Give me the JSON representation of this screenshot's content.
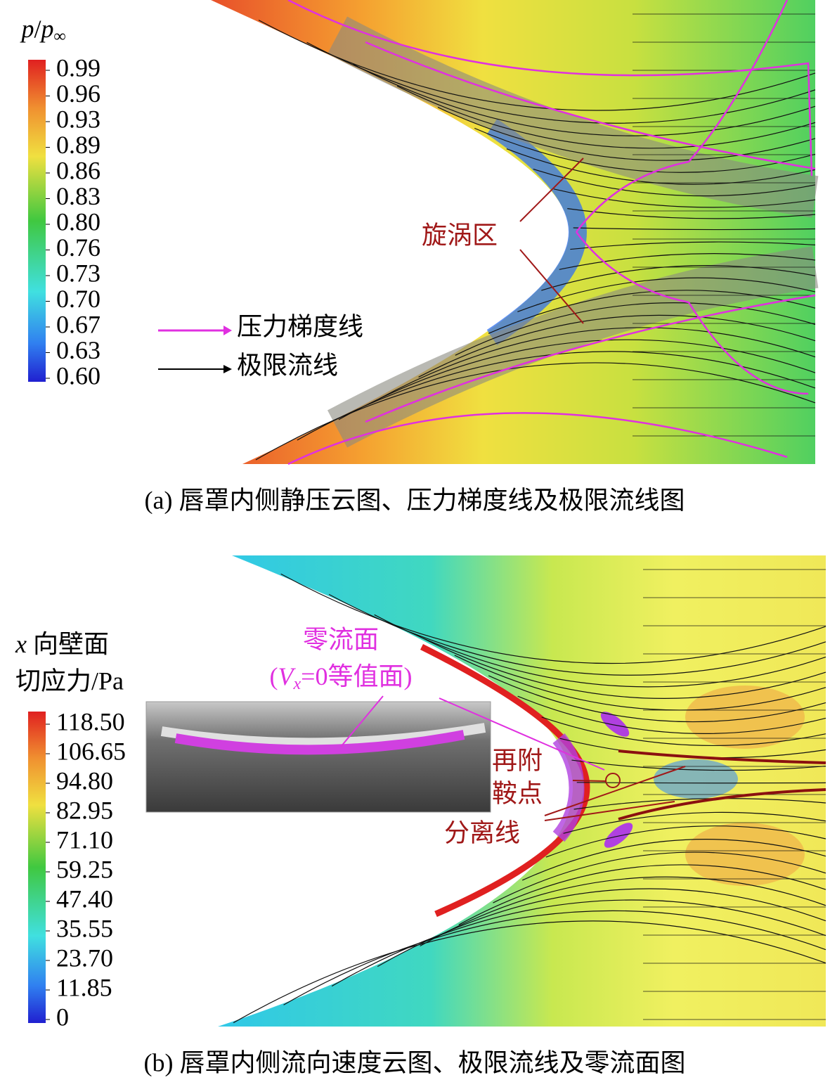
{
  "panel_a": {
    "colorbar": {
      "title": [
        "p",
        "/",
        "p",
        "∞"
      ],
      "ticks": [
        "0.99",
        "0.96",
        "0.93",
        "0.89",
        "0.86",
        "0.83",
        "0.80",
        "0.76",
        "0.73",
        "0.70",
        "0.67",
        "0.63",
        "0.60"
      ]
    },
    "legend": [
      "压力梯度线",
      "极限流线"
    ],
    "annotation": "旋涡区",
    "caption": "(a) 唇罩内侧静压云图、压力梯度线及极限流线图"
  },
  "panel_b": {
    "colorbar": {
      "title": [
        "x",
        " 向壁面",
        "切应力/Pa"
      ],
      "ticks": [
        "118.50",
        "106.65",
        "94.80",
        "82.95",
        "71.10",
        "59.25",
        "47.40",
        "35.55",
        "23.70",
        "11.85",
        "0"
      ]
    },
    "annotations": {
      "zero_flow": "零流面",
      "zero_flow_def": [
        "(",
        "V",
        "x",
        "=0等值面)"
      ],
      "reattach": "再附",
      "saddle": "鞍点",
      "separation": "分离线"
    },
    "caption": "(b) 唇罩内侧流向速度云图、极限流线及零流面图"
  }
}
